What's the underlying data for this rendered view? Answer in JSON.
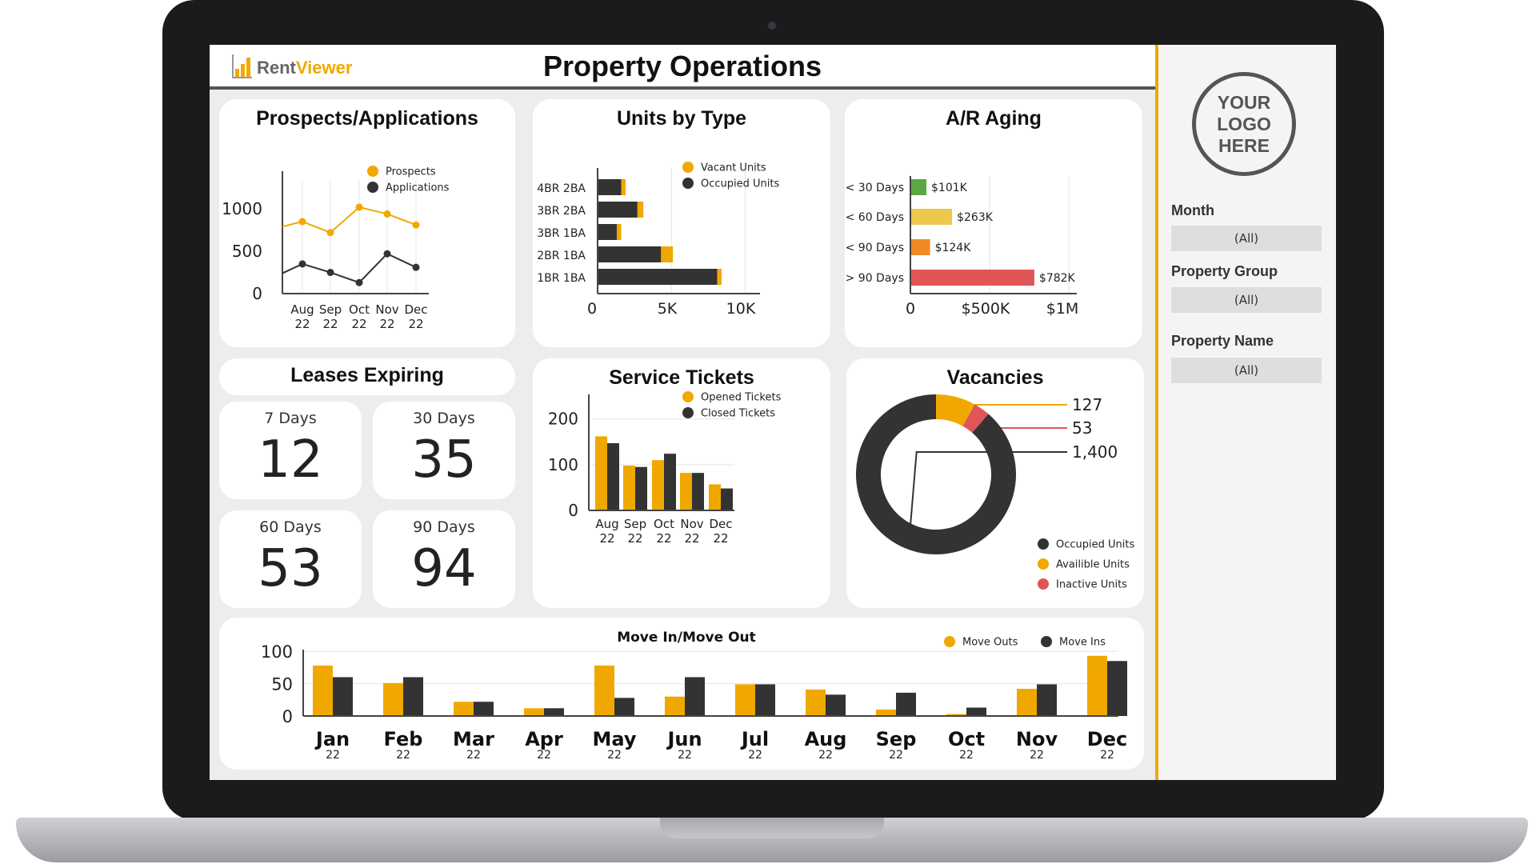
{
  "header": {
    "title": "Property Operations",
    "logo_rent": "Rent",
    "logo_viewer": "Viewer"
  },
  "colors": {
    "accent": "#f0a800",
    "dark": "#333333",
    "red": "#e05555",
    "green": "#5aa845",
    "yellow_light": "#ecc94b",
    "orange": "#f08a24"
  },
  "prospects": {
    "title": "Prospects/Applications",
    "chart_data": {
      "type": "line",
      "categories": [
        "Aug",
        "Sep",
        "Oct",
        "Nov",
        "Dec"
      ],
      "category_sub": [
        "22",
        "22",
        "22",
        "22",
        "22"
      ],
      "leading_values": {
        "Prospects": 790,
        "Applications": 240
      },
      "series": [
        {
          "name": "Prospects",
          "values": [
            850,
            720,
            1020,
            940,
            810
          ],
          "color": "#f0a800"
        },
        {
          "name": "Applications",
          "values": [
            350,
            250,
            130,
            470,
            310
          ],
          "color": "#333333"
        }
      ],
      "yticks": [
        0,
        500,
        1000
      ],
      "ylim": [
        0,
        1350
      ],
      "legend": "top-right"
    }
  },
  "units_by_type": {
    "title": "Units by Type",
    "chart_data": {
      "type": "bar",
      "orientation": "horizontal",
      "stacked": true,
      "categories": [
        "4BR 2BA",
        "3BR 2BA",
        "3BR 1BA",
        "2BR 1BA",
        "1BR 1BA"
      ],
      "series": [
        {
          "name": "Occupied Units",
          "values": [
            1600,
            2700,
            1300,
            4300,
            8100
          ],
          "color": "#333333"
        },
        {
          "name": "Vacant Units",
          "values": [
            300,
            400,
            300,
            800,
            300
          ],
          "color": "#f0a800"
        }
      ],
      "xticks": [
        "0",
        "5K",
        "10K"
      ],
      "xtick_values": [
        0,
        5000,
        10000
      ],
      "xlim": [
        0,
        11000
      ],
      "legend_order": [
        "Vacant Units",
        "Occupied Units"
      ]
    }
  },
  "ar_aging": {
    "title": "A/R Aging",
    "chart_data": {
      "type": "bar",
      "orientation": "horizontal",
      "categories": [
        "< 30 Days",
        "< 60 Days",
        "< 90 Days",
        "> 90 Days"
      ],
      "values": [
        101,
        263,
        124,
        782
      ],
      "value_labels": [
        "$101K",
        "$263K",
        "$124K",
        "$782K"
      ],
      "colors": [
        "#5aa845",
        "#ecc94b",
        "#f08a24",
        "#e05555"
      ],
      "xticks": [
        "0",
        "$500K",
        "$1M"
      ],
      "xtick_values": [
        0,
        500,
        1000
      ],
      "xlim": [
        0,
        1050
      ]
    }
  },
  "leases": {
    "title": "Leases Expiring",
    "items": [
      {
        "label": "7 Days",
        "value": "12"
      },
      {
        "label": "30 Days",
        "value": "35"
      },
      {
        "label": "60 Days",
        "value": "53"
      },
      {
        "label": "90 Days",
        "value": "94"
      }
    ]
  },
  "service_tickets": {
    "title": "Service Tickets",
    "chart_data": {
      "type": "bar",
      "categories": [
        "Aug",
        "Sep",
        "Oct",
        "Nov",
        "Dec"
      ],
      "category_sub": [
        "22",
        "22",
        "22",
        "22",
        "22"
      ],
      "series": [
        {
          "name": "Opened Tickets",
          "values": [
            162,
            98,
            110,
            82,
            57
          ],
          "color": "#f0a800"
        },
        {
          "name": "Closed Tickets",
          "values": [
            147,
            95,
            124,
            82,
            48
          ],
          "color": "#333333"
        }
      ],
      "yticks": [
        0,
        100,
        200
      ],
      "ylim": [
        0,
        280
      ]
    }
  },
  "vacancies": {
    "title": "Vacancies",
    "chart_data": {
      "type": "pie",
      "donut": true,
      "slices": [
        {
          "name": "Availible Units",
          "value": 127,
          "label": "127",
          "color": "#f0a800"
        },
        {
          "name": "Inactive Units",
          "value": 53,
          "label": "53",
          "color": "#e05555"
        },
        {
          "name": "Occupied Units",
          "value": 1400,
          "label": "1,400",
          "color": "#333333"
        }
      ],
      "legend_order": [
        "Occupied Units",
        "Availible Units",
        "Inactive Units"
      ]
    }
  },
  "move_in_out": {
    "title": "Move In/Move Out",
    "chart_data": {
      "type": "bar",
      "categories": [
        "Jan",
        "Feb",
        "Mar",
        "Apr",
        "May",
        "Jun",
        "Jul",
        "Aug",
        "Sep",
        "Oct",
        "Nov",
        "Dec"
      ],
      "category_sub": [
        "22",
        "22",
        "22",
        "22",
        "22",
        "22",
        "22",
        "22",
        "22",
        "22",
        "22",
        "22"
      ],
      "series": [
        {
          "name": "Move Outs",
          "values": [
            78,
            51,
            22,
            12,
            78,
            30,
            49,
            41,
            10,
            3,
            42,
            93
          ],
          "color": "#f0a800"
        },
        {
          "name": "Move Ins",
          "values": [
            60,
            60,
            22,
            12,
            28,
            60,
            49,
            33,
            36,
            13,
            49,
            85
          ],
          "color": "#333333"
        }
      ],
      "yticks": [
        0,
        50,
        100
      ],
      "ylim": [
        0,
        115
      ],
      "legend": "top-right"
    }
  },
  "sidebar": {
    "logo_lines": [
      "YOUR",
      "LOGO",
      "HERE"
    ],
    "filters": [
      {
        "label": "Month",
        "value": "(All)"
      },
      {
        "label": "Property Group",
        "value": "(All)"
      },
      {
        "label": "Property Name",
        "value": "(All)"
      }
    ]
  }
}
